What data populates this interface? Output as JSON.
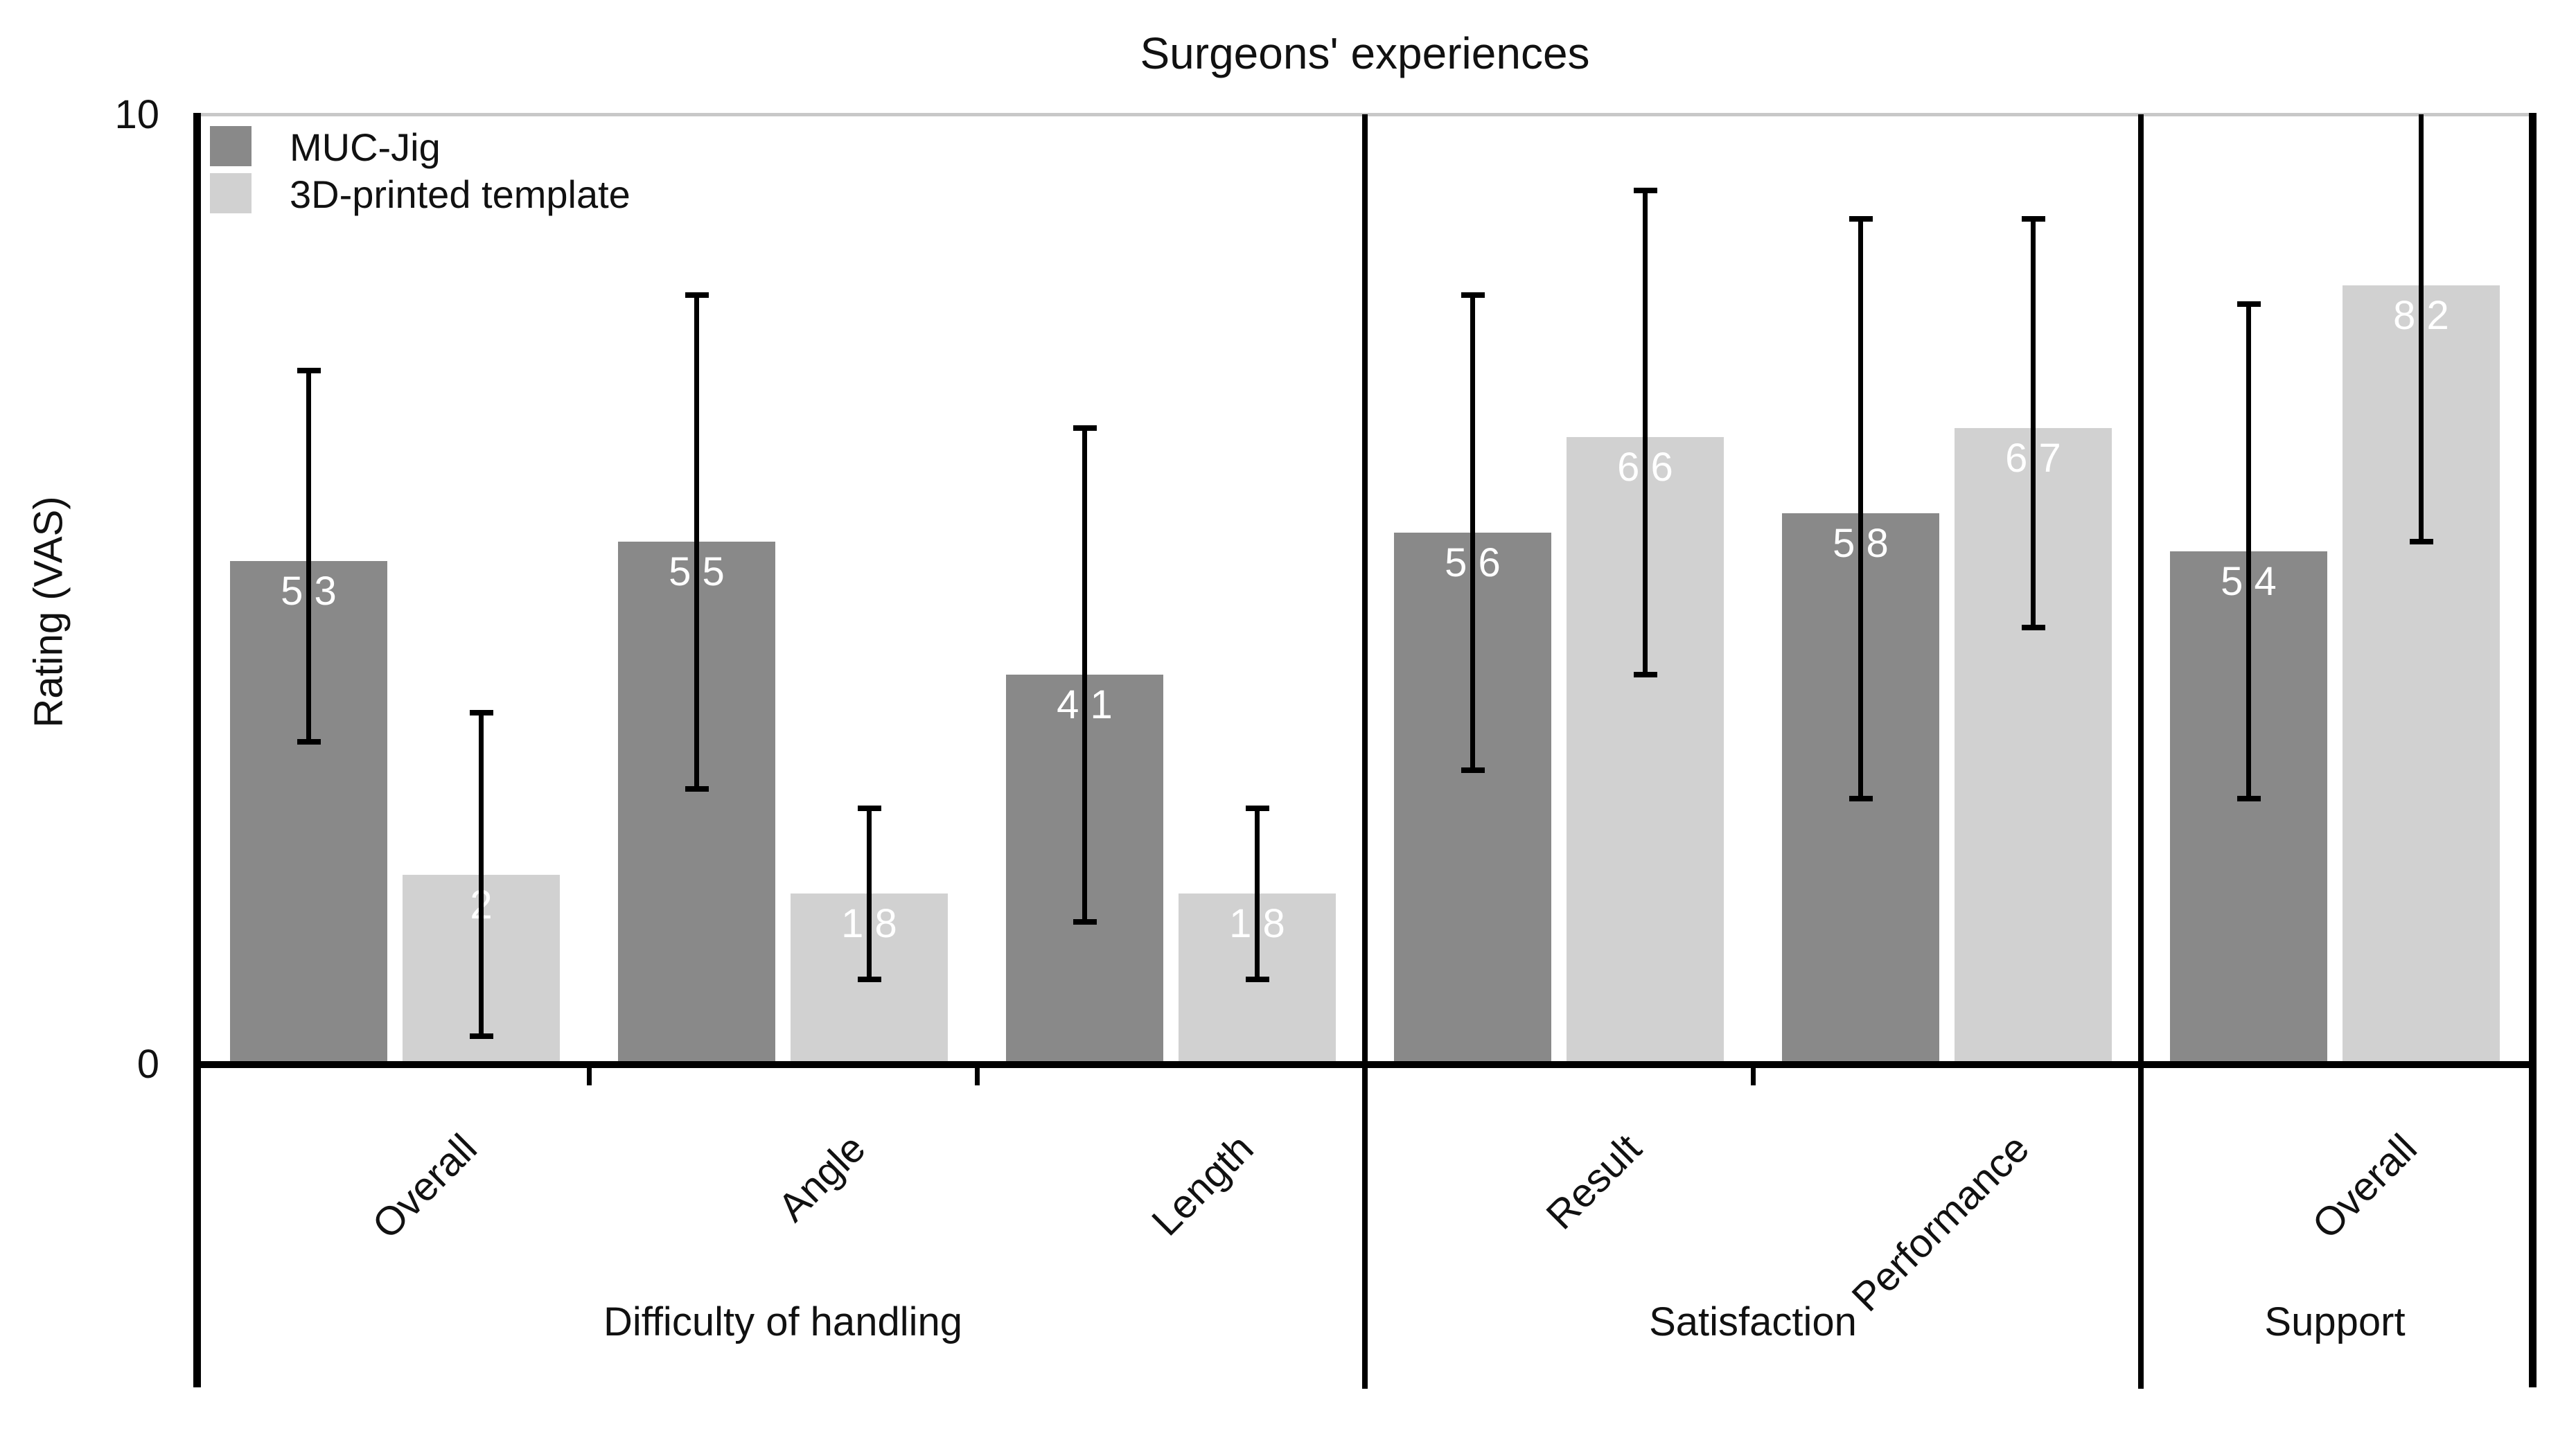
{
  "title": "Surgeons' experiences",
  "y_axis": {
    "label": "Rating (VAS)",
    "tick_top": "10",
    "tick_bottom": "0",
    "min": 0,
    "max": 10
  },
  "legend": [
    {
      "label": "MUC-Jig",
      "color": "#898989"
    },
    {
      "label": "3D-printed template",
      "color": "#d1d1d1"
    }
  ],
  "colors": {
    "bar_dark": "#898989",
    "bar_light": "#d1d1d1",
    "axis": "#000000",
    "plot_top_border": "#c8c8c8",
    "value_label": "#ffffff"
  },
  "chart_data": {
    "type": "bar",
    "title": "Surgeons' experiences",
    "xlabel": "",
    "ylabel": "Rating (VAS)",
    "ylim": [
      0,
      10
    ],
    "grid": false,
    "legend_position": "upper left",
    "series_names": [
      "MUC-Jig",
      "3D-printed template"
    ],
    "sections": [
      {
        "label": "Difficulty of handling",
        "categories": [
          {
            "label": "Overall",
            "bars": [
              {
                "series": "MUC-Jig",
                "value": 5.3,
                "value_label": "5.3",
                "err_low": 3.4,
                "err_high": 7.3
              },
              {
                "series": "3D-printed template",
                "value": 2,
                "value_label": "2",
                "err_low": 0.3,
                "err_high": 3.7
              }
            ]
          },
          {
            "label": "Angle",
            "bars": [
              {
                "series": "MUC-Jig",
                "value": 5.5,
                "value_label": "5.5",
                "err_low": 2.9,
                "err_high": 8.1
              },
              {
                "series": "3D-printed template",
                "value": 1.8,
                "value_label": "1.8",
                "err_low": 0.9,
                "err_high": 2.7
              }
            ]
          },
          {
            "label": "Length",
            "bars": [
              {
                "series": "MUC-Jig",
                "value": 4.1,
                "value_label": "4.1",
                "err_low": 1.5,
                "err_high": 6.7
              },
              {
                "series": "3D-printed template",
                "value": 1.8,
                "value_label": "1.8",
                "err_low": 0.9,
                "err_high": 2.7
              }
            ]
          }
        ]
      },
      {
        "label": "Satisfaction",
        "categories": [
          {
            "label": "Result",
            "bars": [
              {
                "series": "MUC-Jig",
                "value": 5.6,
                "value_label": "5.6",
                "err_low": 3.1,
                "err_high": 8.1
              },
              {
                "series": "3D-printed template",
                "value": 6.6,
                "value_label": "6.6",
                "err_low": 4.1,
                "err_high": 9.2
              }
            ]
          },
          {
            "label": "Performance",
            "bars": [
              {
                "series": "MUC-Jig",
                "value": 5.8,
                "value_label": "5.8",
                "err_low": 2.8,
                "err_high": 8.9
              },
              {
                "series": "3D-printed template",
                "value": 6.7,
                "value_label": "6.7",
                "err_low": 4.6,
                "err_high": 8.9
              }
            ]
          }
        ]
      },
      {
        "label": "Support",
        "categories": [
          {
            "label": "Overall",
            "bars": [
              {
                "series": "MUC-Jig",
                "value": 5.4,
                "value_label": "5.4",
                "err_low": 2.8,
                "err_high": 8.0
              },
              {
                "series": "3D-printed template",
                "value": 8.2,
                "value_label": "8.2",
                "err_low": 5.5,
                "err_high": 10.0,
                "clipped_top": true
              }
            ]
          }
        ]
      }
    ]
  }
}
